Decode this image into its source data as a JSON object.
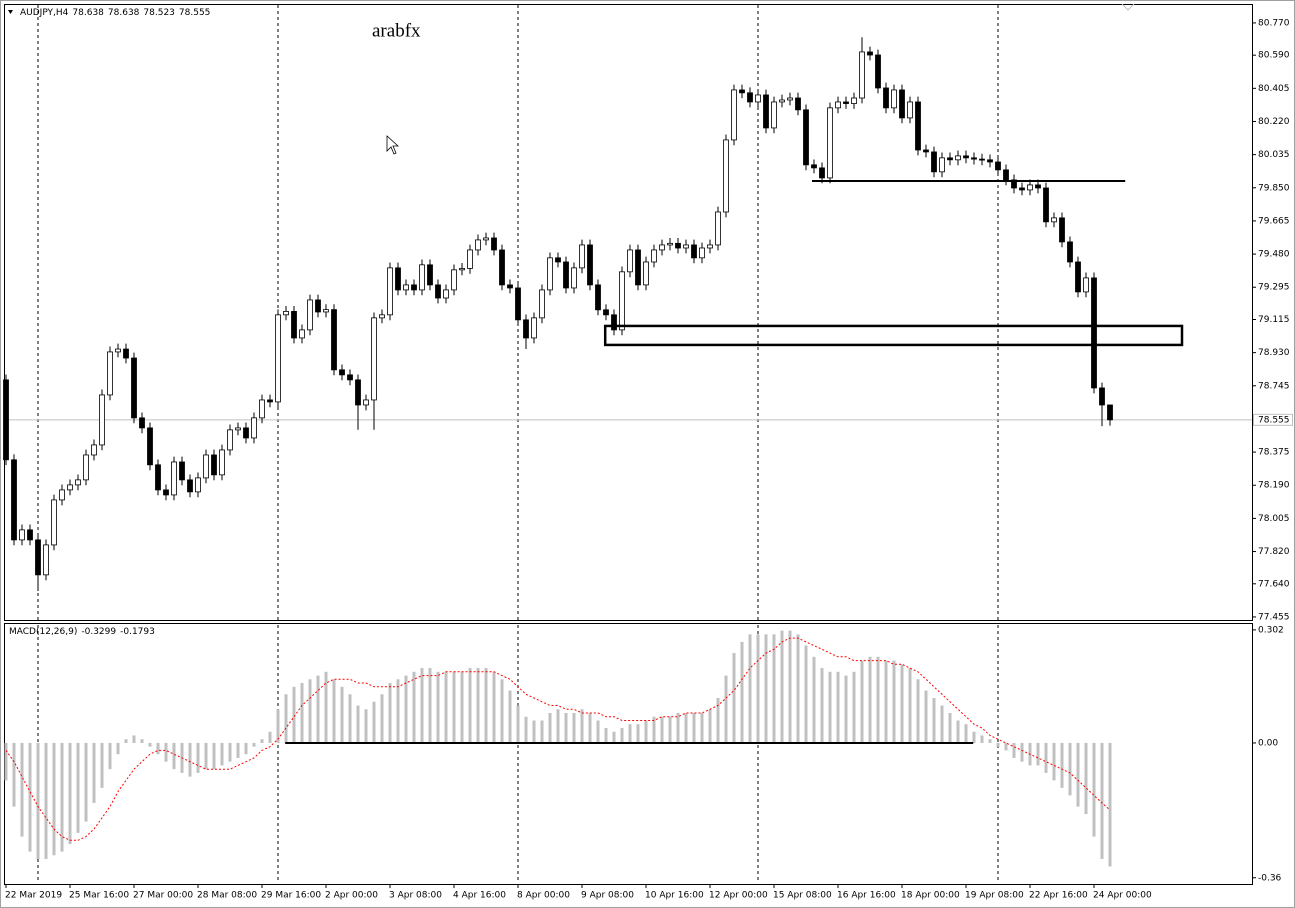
{
  "chart_data": [
    {
      "type": "candlestick",
      "symbol": "AUDJPY,H4",
      "watermark": "arabfx",
      "open": [
        78.778,
        78.332,
        77.885,
        77.941,
        77.885,
        77.69,
        77.857,
        78.108,
        78.164,
        78.192,
        78.22,
        78.359,
        78.415,
        78.694,
        78.934,
        78.95,
        78.9,
        78.566,
        78.51,
        78.304,
        78.164,
        78.136,
        78.32,
        78.22,
        78.153,
        78.231,
        78.359,
        78.248,
        78.387,
        78.499,
        78.51,
        78.454,
        78.566,
        78.666,
        78.655,
        79.141,
        79.16,
        79.012,
        79.057,
        79.224,
        79.157,
        79.17,
        78.834,
        78.806,
        78.778,
        78.638,
        78.666,
        79.124,
        79.141,
        79.403,
        79.28,
        79.308,
        79.28,
        79.42,
        79.308,
        79.235,
        79.28,
        79.392,
        79.4,
        79.503,
        79.559,
        79.57,
        79.503,
        79.308,
        79.291,
        79.113,
        79.012,
        79.124,
        79.28,
        79.459,
        79.436,
        79.291,
        79.403,
        79.531,
        79.308,
        79.169,
        79.141,
        79.057,
        79.381,
        79.503,
        79.308,
        79.436,
        79.503,
        79.531,
        79.54,
        79.514,
        79.531,
        79.459,
        79.514,
        79.531,
        79.715,
        80.117,
        80.396,
        80.38,
        80.329,
        80.368,
        80.184,
        80.329,
        80.34,
        80.351,
        80.285,
        79.978,
        79.961,
        79.905,
        80.296,
        80.329,
        80.32,
        80.351,
        80.608,
        80.591,
        80.407,
        80.296,
        80.396,
        80.24,
        80.329,
        80.061,
        80.05,
        79.939,
        80.017,
        80.006,
        80.028,
        80.017,
        80.01,
        80.006,
        79.994,
        79.95,
        79.894,
        79.849,
        79.838,
        79.866,
        79.849,
        79.66,
        79.682,
        79.548,
        79.436,
        79.269,
        79.347,
        78.733,
        78.638
      ],
      "high": [
        78.808,
        78.362,
        77.971,
        77.971,
        77.915,
        77.887,
        78.138,
        78.194,
        78.222,
        78.25,
        78.389,
        78.445,
        78.724,
        78.964,
        78.98,
        78.98,
        78.93,
        78.596,
        78.54,
        78.334,
        78.194,
        78.35,
        78.35,
        78.25,
        78.261,
        78.389,
        78.389,
        78.417,
        78.529,
        78.54,
        78.54,
        78.596,
        78.696,
        78.696,
        79.171,
        79.19,
        79.19,
        79.087,
        79.254,
        79.254,
        79.2,
        79.2,
        78.864,
        78.836,
        78.808,
        78.696,
        79.154,
        79.171,
        79.433,
        79.433,
        79.338,
        79.338,
        79.45,
        79.45,
        79.338,
        79.31,
        79.422,
        79.43,
        79.533,
        79.589,
        79.6,
        79.6,
        79.533,
        79.338,
        79.321,
        79.143,
        79.154,
        79.31,
        79.489,
        79.489,
        79.466,
        79.433,
        79.561,
        79.561,
        79.338,
        79.199,
        79.171,
        79.411,
        79.533,
        79.533,
        79.466,
        79.533,
        79.561,
        79.57,
        79.57,
        79.561,
        79.561,
        79.544,
        79.561,
        79.745,
        80.147,
        80.426,
        80.426,
        80.41,
        80.398,
        80.398,
        80.359,
        80.37,
        80.381,
        80.381,
        80.315,
        80.008,
        79.991,
        80.326,
        80.359,
        80.359,
        80.381,
        80.69,
        80.638,
        80.621,
        80.437,
        80.426,
        80.426,
        80.359,
        80.359,
        80.091,
        80.08,
        80.047,
        80.047,
        80.058,
        80.058,
        80.047,
        80.04,
        80.036,
        80.024,
        79.98,
        79.924,
        79.879,
        79.896,
        79.896,
        79.879,
        79.712,
        79.712,
        79.578,
        79.466,
        79.377,
        79.377,
        78.763,
        78.638
      ],
      "low": [
        78.302,
        77.855,
        77.855,
        77.855,
        77.6,
        77.66,
        77.827,
        78.078,
        78.134,
        78.162,
        78.19,
        78.329,
        78.385,
        78.664,
        78.904,
        78.87,
        78.536,
        78.48,
        78.274,
        78.134,
        78.106,
        78.106,
        78.19,
        78.123,
        78.123,
        78.201,
        78.218,
        78.218,
        78.357,
        78.469,
        78.424,
        78.424,
        78.536,
        78.625,
        78.625,
        79.111,
        78.982,
        78.982,
        79.027,
        79.127,
        79.127,
        78.804,
        78.776,
        78.748,
        78.5,
        78.608,
        78.5,
        79.094,
        79.111,
        79.25,
        79.25,
        79.25,
        79.25,
        79.278,
        79.205,
        79.205,
        79.25,
        79.362,
        79.37,
        79.473,
        79.529,
        79.473,
        79.278,
        79.261,
        79.083,
        78.95,
        78.982,
        79.094,
        79.25,
        79.406,
        79.261,
        79.261,
        79.373,
        79.278,
        79.139,
        79.111,
        79.027,
        79.027,
        79.351,
        79.278,
        79.278,
        79.406,
        79.473,
        79.501,
        79.484,
        79.484,
        79.429,
        79.429,
        79.484,
        79.501,
        79.685,
        80.087,
        80.35,
        80.299,
        80.299,
        80.154,
        80.154,
        80.299,
        80.31,
        80.255,
        79.948,
        79.931,
        79.875,
        79.875,
        80.266,
        80.29,
        80.29,
        80.321,
        80.561,
        80.377,
        80.266,
        80.266,
        80.21,
        80.21,
        80.031,
        80.02,
        79.909,
        79.909,
        79.976,
        79.976,
        79.987,
        79.98,
        79.976,
        79.964,
        79.92,
        79.864,
        79.819,
        79.808,
        79.808,
        79.819,
        79.63,
        79.63,
        79.518,
        79.406,
        79.239,
        79.239,
        78.703,
        78.52,
        78.523
      ],
      "close": [
        78.332,
        77.885,
        77.941,
        77.885,
        77.69,
        77.857,
        78.108,
        78.164,
        78.192,
        78.22,
        78.359,
        78.415,
        78.694,
        78.934,
        78.95,
        78.9,
        78.566,
        78.51,
        78.304,
        78.164,
        78.136,
        78.32,
        78.22,
        78.153,
        78.231,
        78.359,
        78.248,
        78.387,
        78.499,
        78.51,
        78.454,
        78.566,
        78.666,
        78.655,
        79.141,
        79.16,
        79.012,
        79.057,
        79.224,
        79.157,
        79.17,
        78.834,
        78.806,
        78.778,
        78.638,
        78.666,
        79.124,
        79.141,
        79.403,
        79.28,
        79.308,
        79.28,
        79.42,
        79.308,
        79.235,
        79.28,
        79.392,
        79.4,
        79.503,
        79.559,
        79.57,
        79.503,
        79.308,
        79.291,
        79.113,
        79.012,
        79.124,
        79.28,
        79.459,
        79.436,
        79.291,
        79.403,
        79.531,
        79.308,
        79.169,
        79.141,
        79.057,
        79.381,
        79.503,
        79.308,
        79.436,
        79.503,
        79.531,
        79.54,
        79.514,
        79.531,
        79.459,
        79.514,
        79.531,
        79.715,
        80.117,
        80.396,
        80.38,
        80.329,
        80.368,
        80.184,
        80.329,
        80.34,
        80.351,
        80.285,
        79.978,
        79.961,
        79.905,
        80.296,
        80.329,
        80.32,
        80.351,
        80.608,
        80.591,
        80.407,
        80.296,
        80.396,
        80.24,
        80.329,
        80.061,
        80.05,
        79.939,
        80.017,
        80.006,
        80.028,
        80.017,
        80.01,
        80.006,
        79.994,
        79.95,
        79.894,
        79.849,
        79.838,
        79.866,
        79.849,
        79.66,
        79.682,
        79.548,
        79.436,
        79.269,
        79.347,
        78.733,
        78.638,
        78.555
      ],
      "xlim": [
        -0.25,
        155.75
      ],
      "xticks": [
        {
          "value": 0,
          "label": "22 Mar 2019"
        },
        {
          "value": 8,
          "label": "25 Mar 16:00"
        },
        {
          "value": 16,
          "label": "27 Mar 00:00"
        },
        {
          "value": 24,
          "label": "28 Mar 08:00"
        },
        {
          "value": 32,
          "label": "29 Mar 16:00"
        },
        {
          "value": 40,
          "label": "2 Apr 00:00"
        },
        {
          "value": 48,
          "label": "3 Apr 08:00"
        },
        {
          "value": 56,
          "label": "4 Apr 16:00"
        },
        {
          "value": 64,
          "label": "8 Apr 00:00"
        },
        {
          "value": 72,
          "label": "9 Apr 08:00"
        },
        {
          "value": 80,
          "label": "10 Apr 16:00"
        },
        {
          "value": 88,
          "label": "12 Apr 00:00"
        },
        {
          "value": 96,
          "label": "15 Apr 08:00"
        },
        {
          "value": 104,
          "label": "16 Apr 16:00"
        },
        {
          "value": 112,
          "label": "18 Apr 00:00"
        },
        {
          "value": 120,
          "label": "19 Apr 08:00"
        },
        {
          "value": 128,
          "label": "22 Apr 16:00"
        },
        {
          "value": 136,
          "label": "24 Apr 00:00"
        }
      ],
      "separators": [
        4,
        34,
        64,
        94,
        124
      ],
      "ylim": [
        77.438,
        80.87
      ],
      "yticks": [
        {
          "value": 80.77,
          "label": "80.770"
        },
        {
          "value": 80.59,
          "label": "80.590"
        },
        80.405,
        {
          "value": 80.22,
          "label": "80.220"
        },
        80.035,
        {
          "value": 79.85,
          "label": "79.850"
        },
        79.665,
        {
          "value": 79.48,
          "label": "79.480"
        },
        79.295,
        79.115,
        {
          "value": 78.93,
          "label": "78.930"
        },
        78.745,
        78.375,
        {
          "value": 78.19,
          "label": "78.190"
        },
        78.005,
        {
          "value": 77.82,
          "label": "77.820"
        },
        {
          "value": 77.64,
          "label": "77.640"
        },
        77.455
      ],
      "hlines": [
        {
          "value": 79.888,
          "x": [
            100.75,
            139.9
          ]
        }
      ],
      "rectangles": [
        {
          "values": [
            78.973,
            79.079
          ],
          "x": [
            74.9,
            147
          ]
        }
      ],
      "bull_color": "#ffffff",
      "bear_color": "#000000"
    },
    {
      "type": "macd",
      "label": "MACD(12,26,9)",
      "histogram": [
        -0.1,
        -0.17,
        -0.25,
        -0.29,
        -0.31,
        -0.31,
        -0.3,
        -0.29,
        -0.27,
        -0.24,
        -0.21,
        -0.16,
        -0.12,
        -0.07,
        -0.03,
        0.01,
        0.02,
        0.01,
        -0.01,
        -0.03,
        -0.05,
        -0.07,
        -0.08,
        -0.09,
        -0.08,
        -0.07,
        -0.07,
        -0.06,
        -0.05,
        -0.04,
        -0.03,
        -0.01,
        0.01,
        0.03,
        0.09,
        0.13,
        0.15,
        0.16,
        0.17,
        0.18,
        0.19,
        0.17,
        0.15,
        0.13,
        0.1,
        0.09,
        0.11,
        0.13,
        0.16,
        0.17,
        0.18,
        0.19,
        0.2,
        0.2,
        0.19,
        0.19,
        0.19,
        0.19,
        0.2,
        0.2,
        0.2,
        0.19,
        0.17,
        0.14,
        0.1,
        0.07,
        0.06,
        0.06,
        0.08,
        0.09,
        0.08,
        0.08,
        0.09,
        0.08,
        0.06,
        0.04,
        0.03,
        0.04,
        0.05,
        0.05,
        0.06,
        0.07,
        0.07,
        0.07,
        0.08,
        0.08,
        0.08,
        0.08,
        0.09,
        0.12,
        0.18,
        0.24,
        0.27,
        0.29,
        0.29,
        0.29,
        0.29,
        0.3,
        0.3,
        0.29,
        0.26,
        0.23,
        0.2,
        0.19,
        0.19,
        0.18,
        0.19,
        0.22,
        0.23,
        0.23,
        0.22,
        0.22,
        0.21,
        0.2,
        0.17,
        0.14,
        0.12,
        0.1,
        0.08,
        0.06,
        0.05,
        0.03,
        0.02,
        0.01,
        -0.01,
        -0.02,
        -0.04,
        -0.05,
        -0.06,
        -0.06,
        -0.08,
        -0.1,
        -0.12,
        -0.14,
        -0.17,
        -0.19,
        -0.25,
        -0.31,
        -0.3299
      ],
      "signal": [
        -0.02,
        -0.05,
        -0.09,
        -0.13,
        -0.17,
        -0.2,
        -0.23,
        -0.25,
        -0.26,
        -0.26,
        -0.25,
        -0.23,
        -0.2,
        -0.17,
        -0.13,
        -0.1,
        -0.07,
        -0.05,
        -0.03,
        -0.02,
        -0.02,
        -0.03,
        -0.04,
        -0.05,
        -0.06,
        -0.07,
        -0.07,
        -0.07,
        -0.07,
        -0.06,
        -0.05,
        -0.04,
        -0.02,
        -0.01,
        0.01,
        0.04,
        0.07,
        0.1,
        0.12,
        0.14,
        0.16,
        0.17,
        0.17,
        0.17,
        0.16,
        0.16,
        0.15,
        0.15,
        0.15,
        0.15,
        0.16,
        0.17,
        0.18,
        0.18,
        0.18,
        0.19,
        0.19,
        0.19,
        0.19,
        0.19,
        0.19,
        0.19,
        0.18,
        0.17,
        0.15,
        0.13,
        0.12,
        0.11,
        0.1,
        0.1,
        0.09,
        0.09,
        0.08,
        0.08,
        0.08,
        0.07,
        0.07,
        0.06,
        0.06,
        0.06,
        0.06,
        0.06,
        0.07,
        0.07,
        0.07,
        0.08,
        0.08,
        0.08,
        0.09,
        0.1,
        0.12,
        0.14,
        0.17,
        0.2,
        0.22,
        0.24,
        0.25,
        0.27,
        0.28,
        0.28,
        0.27,
        0.26,
        0.25,
        0.24,
        0.23,
        0.23,
        0.22,
        0.22,
        0.22,
        0.22,
        0.22,
        0.21,
        0.21,
        0.2,
        0.19,
        0.17,
        0.15,
        0.13,
        0.11,
        0.09,
        0.07,
        0.05,
        0.04,
        0.02,
        0.01,
        0.0,
        -0.01,
        -0.02,
        -0.03,
        -0.04,
        -0.05,
        -0.06,
        -0.07,
        -0.08,
        -0.1,
        -0.12,
        -0.14,
        -0.16,
        -0.1793
      ],
      "ylim": [
        -0.374,
        0.315
      ],
      "yticks": [
        0.302,
        {
          "value": 0,
          "label": "0.00"
        },
        -0.36
      ],
      "hlines": [
        {
          "value": 0,
          "x": [
            34.9,
            120.9
          ]
        },
        {
          "value": 0,
          "x": [
            69.9,
            97.9
          ]
        }
      ],
      "histogram_color": "#c0c0c0",
      "signal_color": "#ff0000"
    }
  ]
}
